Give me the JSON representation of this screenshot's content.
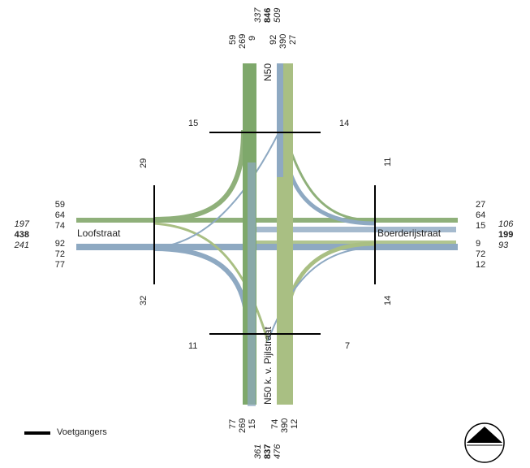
{
  "colors": {
    "green": "#8fb07a",
    "dark_green": "#7ea86b",
    "blue": "#8ea9c2",
    "olive": "#a9bf83"
  },
  "streets": {
    "north": "N50",
    "south": "N50 k. v. Pijlstraat",
    "west": "Loofstraat",
    "east": "Boerderijstraat"
  },
  "north": {
    "in": [
      "59",
      "269",
      "9"
    ],
    "out": [
      "92",
      "390",
      "27"
    ],
    "totals": [
      "337",
      "846",
      "509"
    ]
  },
  "south": {
    "in": [
      "77",
      "269",
      "15"
    ],
    "out": [
      "74",
      "390",
      "12"
    ],
    "totals": [
      "361",
      "837",
      "476"
    ]
  },
  "west": {
    "in": [
      "59",
      "64",
      "74"
    ],
    "out": [
      "92",
      "72",
      "77"
    ],
    "totals": [
      "197",
      "438",
      "241"
    ]
  },
  "east": {
    "in": [
      "27",
      "64",
      "15"
    ],
    "out": [
      "9",
      "72",
      "12"
    ],
    "totals": [
      "106",
      "199",
      "93"
    ]
  },
  "pedestrians": {
    "north_left": "15",
    "north_right": "14",
    "west": "29",
    "west_low": "32",
    "east_top": "11",
    "east_low": "14",
    "south_left": "11",
    "south_right": "7"
  },
  "legend": {
    "label": "Voetgangers",
    "icon": "compass-north-arrow"
  }
}
